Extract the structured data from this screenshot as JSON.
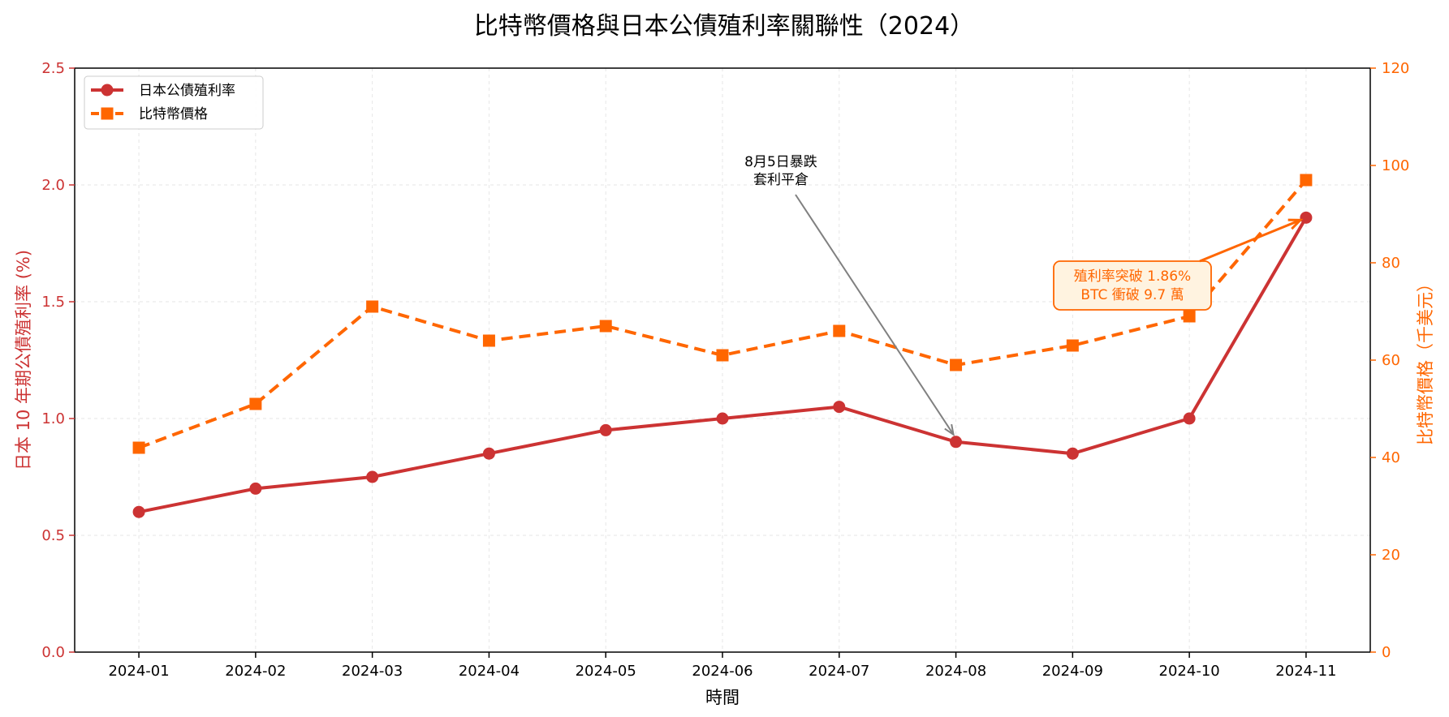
{
  "chart_data": {
    "type": "line",
    "title": "比特幣價格與日本公債殖利率關聯性（2024）",
    "xlabel": "時間",
    "ylabel_left": "日本 10 年期公債殖利率 (%)",
    "ylabel_right": "比特幣價格（千美元）",
    "categories": [
      "2024-01",
      "2024-02",
      "2024-03",
      "2024-04",
      "2024-05",
      "2024-06",
      "2024-07",
      "2024-08",
      "2024-09",
      "2024-10",
      "2024-11"
    ],
    "ylim_left": [
      0,
      2.5
    ],
    "yticks_left": [
      "0.0",
      "0.5",
      "1.0",
      "1.5",
      "2.0",
      "2.5"
    ],
    "ylim_right": [
      0,
      120
    ],
    "yticks_right": [
      "0",
      "20",
      "40",
      "60",
      "80",
      "100",
      "120"
    ],
    "grid": true,
    "legend_position": "top-left",
    "series": [
      {
        "name": "日本公債殖利率",
        "axis": "left",
        "color": "#cc3333",
        "marker": "circle",
        "line_style": "solid",
        "values": [
          0.6,
          0.7,
          0.75,
          0.85,
          0.95,
          1.0,
          1.05,
          0.9,
          0.85,
          1.0,
          1.86
        ]
      },
      {
        "name": "比特幣價格",
        "axis": "right",
        "color": "#ff6600",
        "marker": "square",
        "line_style": "dashed",
        "values": [
          42,
          51,
          71,
          64,
          67,
          61,
          66,
          59,
          63,
          69,
          97
        ]
      }
    ],
    "annotations": [
      {
        "lines": [
          "8月5日暴跌",
          "套利平倉"
        ],
        "target_category": "2024-08",
        "target_series": "日本公債殖利率",
        "color": "#000000",
        "arrow_color": "#808080"
      },
      {
        "lines": [
          "殖利率突破 1.86%",
          "BTC 衝破 9.7 萬"
        ],
        "target_category": "2024-11",
        "target_series": "日本公債殖利率",
        "color": "#ff6600",
        "box_fill": "#fff3e0",
        "arrow_color": "#ff6600"
      }
    ]
  }
}
